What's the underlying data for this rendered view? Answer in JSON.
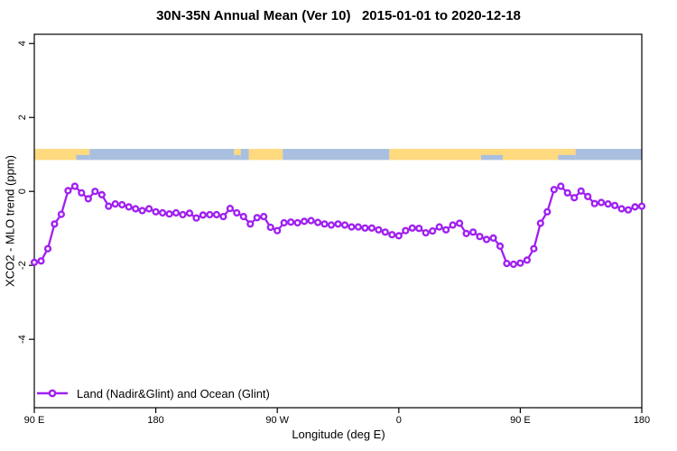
{
  "chart_data": {
    "type": "line",
    "title": "30N-35N Annual Mean (Ver 10)   2015-01-01 to 2020-12-18",
    "xlabel": "Longitude (deg E)",
    "ylabel": "XCO2 - MLO trend (ppm)",
    "xlim": [
      90,
      540
    ],
    "ylim": [
      -5.85,
      4.25
    ],
    "grid": false,
    "legend_position": "bottom-left",
    "x_ticks": [
      {
        "value": 90,
        "label": "90 E"
      },
      {
        "value": 180,
        "label": "180"
      },
      {
        "value": 270,
        "label": "90 W"
      },
      {
        "value": 360,
        "label": "0"
      },
      {
        "value": 450,
        "label": "90 E"
      },
      {
        "value": 540,
        "label": "180"
      }
    ],
    "y_ticks": [
      {
        "value": 4,
        "label": "4"
      },
      {
        "value": 2,
        "label": "2"
      },
      {
        "value": 0,
        "label": "0"
      },
      {
        "value": -2,
        "label": "-2"
      },
      {
        "value": -4,
        "label": "-4"
      }
    ],
    "band": {
      "top_value": 1.15,
      "bottom_value": 0.85,
      "land_color": "#FFD97E",
      "ocean_color": "#A9BFDF",
      "segments": [
        {
          "from": 90,
          "to": 121,
          "type": "land"
        },
        {
          "from": 121,
          "to": 131,
          "type": "mixed"
        },
        {
          "from": 131,
          "to": 238,
          "type": "ocean"
        },
        {
          "from": 238,
          "to": 243,
          "type": "mixed"
        },
        {
          "from": 243,
          "to": 249,
          "type": "ocean"
        },
        {
          "from": 249,
          "to": 274,
          "type": "land"
        },
        {
          "from": 274,
          "to": 353,
          "type": "ocean"
        },
        {
          "from": 353,
          "to": 421,
          "type": "land"
        },
        {
          "from": 421,
          "to": 437,
          "type": "mixed"
        },
        {
          "from": 437,
          "to": 478,
          "type": "land"
        },
        {
          "from": 478,
          "to": 491,
          "type": "mixed"
        },
        {
          "from": 491,
          "to": 540,
          "type": "ocean"
        }
      ]
    },
    "series": [
      {
        "name": "Land (Nadir&Glint) and Ocean (Glint)",
        "color": "#A020F0",
        "marker": "open-circle",
        "x": [
          90,
          95,
          100,
          105,
          110,
          115,
          120,
          125,
          130,
          135,
          140,
          145,
          150,
          155,
          160,
          165,
          170,
          175,
          180,
          185,
          190,
          195,
          200,
          205,
          210,
          215,
          220,
          225,
          230,
          235,
          240,
          245,
          250,
          255,
          260,
          265,
          270,
          275,
          280,
          285,
          290,
          295,
          300,
          305,
          310,
          315,
          320,
          325,
          330,
          335,
          340,
          345,
          350,
          355,
          360,
          365,
          370,
          375,
          380,
          385,
          390,
          395,
          400,
          405,
          410,
          415,
          420,
          425,
          430,
          435,
          440,
          445,
          450,
          455,
          460,
          465,
          470,
          475,
          480,
          485,
          490,
          495,
          500,
          505,
          510,
          515,
          520,
          525,
          530,
          535,
          540
        ],
        "values": [
          -1.92,
          -1.88,
          -1.55,
          -0.88,
          -0.62,
          0.02,
          0.14,
          -0.04,
          -0.2,
          0.0,
          -0.09,
          -0.4,
          -0.34,
          -0.36,
          -0.42,
          -0.47,
          -0.52,
          -0.47,
          -0.55,
          -0.58,
          -0.61,
          -0.58,
          -0.63,
          -0.59,
          -0.72,
          -0.64,
          -0.63,
          -0.63,
          -0.68,
          -0.46,
          -0.58,
          -0.68,
          -0.88,
          -0.71,
          -0.68,
          -0.97,
          -1.06,
          -0.85,
          -0.83,
          -0.85,
          -0.81,
          -0.79,
          -0.84,
          -0.88,
          -0.91,
          -0.88,
          -0.91,
          -0.96,
          -0.96,
          -0.99,
          -0.99,
          -1.04,
          -1.1,
          -1.17,
          -1.2,
          -1.06,
          -0.99,
          -1.0,
          -1.12,
          -1.07,
          -0.96,
          -1.04,
          -0.91,
          -0.86,
          -1.14,
          -1.1,
          -1.22,
          -1.3,
          -1.26,
          -1.48,
          -1.95,
          -1.97,
          -1.94,
          -1.86,
          -1.55,
          -0.86,
          -0.55,
          0.05,
          0.14,
          -0.04,
          -0.17,
          0.01,
          -0.14,
          -0.33,
          -0.3,
          -0.34,
          -0.38,
          -0.47,
          -0.5,
          -0.42,
          -0.4
        ]
      }
    ]
  }
}
